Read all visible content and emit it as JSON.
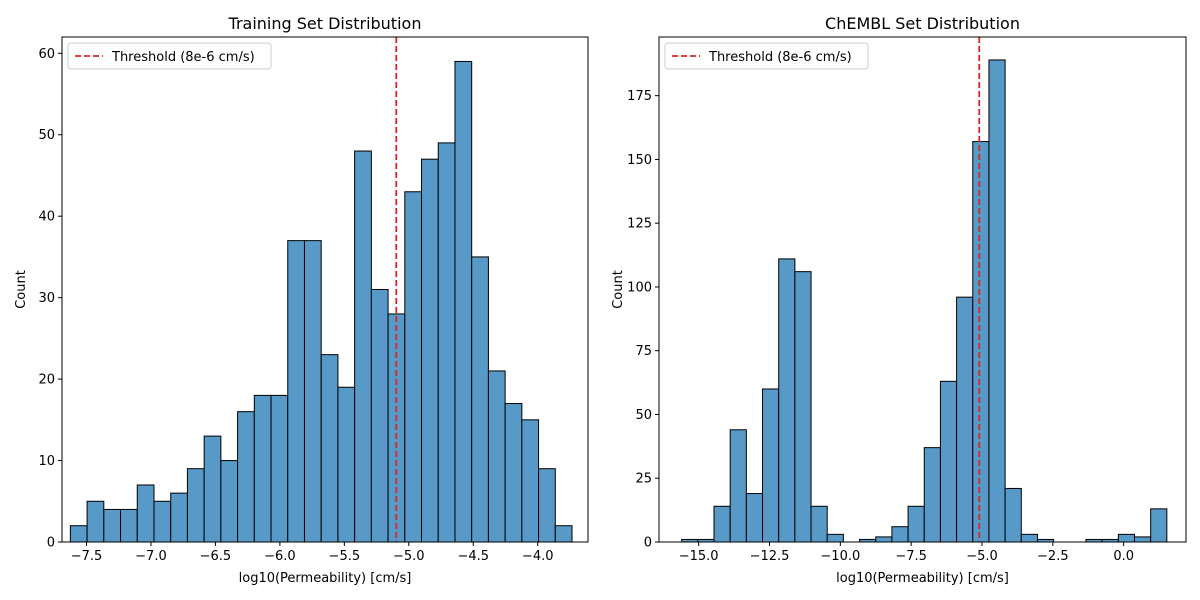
{
  "chart_data": [
    {
      "type": "bar",
      "title": "Training Set Distribution",
      "xlabel": "log10(Permeability) [cm/s]",
      "ylabel": "Count",
      "xlim": [
        -7.69,
        -3.61
      ],
      "ylim": [
        0,
        62
      ],
      "xticks": [
        -7.5,
        -7.0,
        -6.5,
        -6.0,
        -5.5,
        -5.0,
        -4.5,
        -4.0
      ],
      "xtick_labels": [
        "−7.5",
        "−7.0",
        "−6.5",
        "−6.0",
        "−5.5",
        "−5.0",
        "−4.5",
        "−4.0"
      ],
      "yticks": [
        0,
        10,
        20,
        30,
        40,
        50,
        60
      ],
      "ytick_labels": [
        "0",
        "10",
        "20",
        "30",
        "40",
        "50",
        "60"
      ],
      "bin_start": -7.625,
      "bin_width": 0.1297,
      "values": [
        2,
        5,
        4,
        4,
        7,
        5,
        6,
        9,
        13,
        10,
        16,
        18,
        18,
        37,
        37,
        23,
        19,
        48,
        31,
        28,
        43,
        47,
        49,
        59,
        35,
        21,
        17,
        15,
        9,
        2
      ],
      "threshold": -5.097,
      "legend": {
        "label": "Threshold (8e-6 cm/s)",
        "placement": "upper-left"
      },
      "bar_color": "#5799c7",
      "edge_color": "#000000",
      "threshold_color": "#d62728",
      "grid": false
    },
    {
      "type": "bar",
      "title": "ChEMBL Set Distribution",
      "xlabel": "log10(Permeability) [cm/s]",
      "ylabel": "Count",
      "xlim": [
        -16.4,
        2.2
      ],
      "ylim": [
        0,
        198
      ],
      "xticks": [
        -15.0,
        -12.5,
        -10.0,
        -7.5,
        -5.0,
        -2.5,
        0.0
      ],
      "xtick_labels": [
        "−15.0",
        "−12.5",
        "−10.0",
        "−7.5",
        "−5.0",
        "−2.5",
        "0.0"
      ],
      "yticks": [
        0,
        25,
        50,
        75,
        100,
        125,
        150,
        175
      ],
      "ytick_labels": [
        "0",
        "25",
        "50",
        "75",
        "100",
        "125",
        "150",
        "175"
      ],
      "bin_start": -15.6,
      "bin_width": 0.5708,
      "values": [
        1,
        1,
        14,
        44,
        19,
        60,
        111,
        106,
        14,
        3,
        0,
        1,
        2,
        6,
        14,
        37,
        63,
        96,
        157,
        189,
        21,
        3,
        1,
        0,
        0,
        1,
        1,
        3,
        2,
        13
      ],
      "threshold": -5.097,
      "legend": {
        "label": "Threshold (8e-6 cm/s)",
        "placement": "upper-left"
      },
      "bar_color": "#5799c7",
      "edge_color": "#000000",
      "threshold_color": "#d62728",
      "grid": false
    }
  ]
}
